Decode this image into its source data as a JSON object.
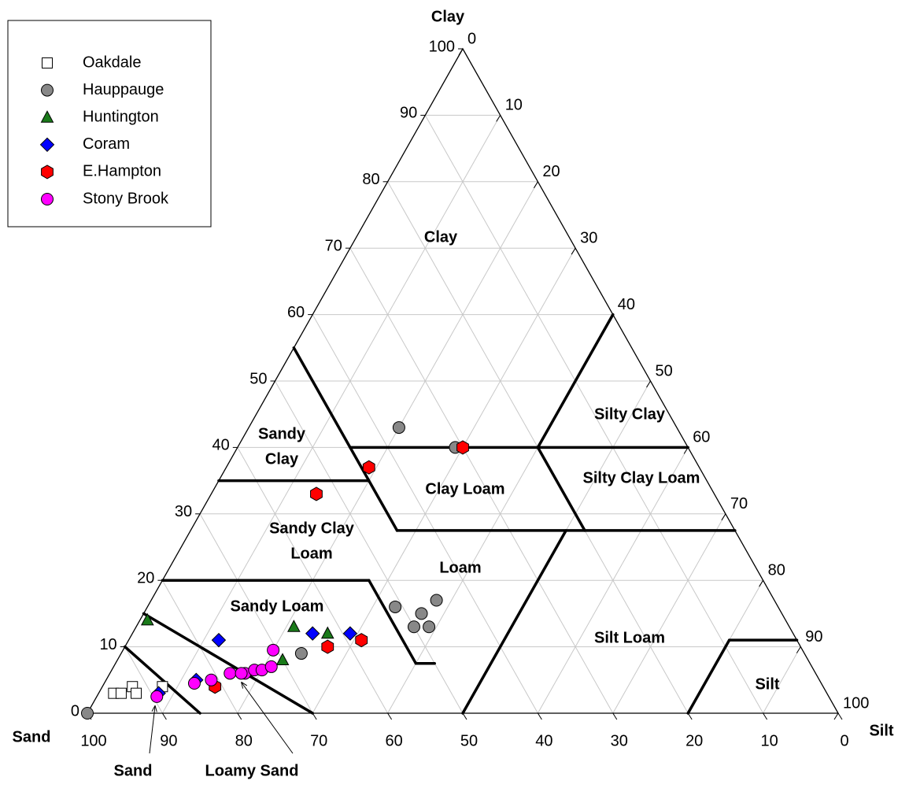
{
  "chart_data": {
    "type": "ternary",
    "axis_titles": {
      "clay": "Clay",
      "sand": "Sand",
      "silt": "Silt"
    },
    "clay_ticks": [
      0,
      10,
      20,
      30,
      40,
      50,
      60,
      70,
      80,
      90,
      100
    ],
    "silt_ticks": [
      0,
      10,
      20,
      30,
      40,
      50,
      60,
      70,
      80,
      90,
      100
    ],
    "sand_ticks": [
      100,
      90,
      80,
      70,
      60,
      50,
      40,
      30,
      20,
      10,
      0
    ],
    "grid": true,
    "legend_position": "upper left",
    "series": [
      {
        "name": "Oakdale",
        "marker": "square",
        "color": "#ffffff",
        "clay": [
          3,
          3,
          4,
          3,
          4
        ],
        "silt": [
          2,
          3,
          4,
          5,
          8
        ]
      },
      {
        "name": "Hauppauge",
        "marker": "circle",
        "color": "#888888",
        "clay": [
          0,
          43,
          40,
          9,
          16,
          17,
          15,
          13,
          13
        ],
        "silt": [
          0,
          20,
          29,
          24,
          33,
          38,
          37,
          37,
          39
        ]
      },
      {
        "name": "Huntington",
        "marker": "triangle",
        "color": "#1a7a1a",
        "clay": [
          14,
          13,
          12,
          8
        ],
        "silt": [
          1,
          21,
          26,
          22
        ]
      },
      {
        "name": "Coram",
        "marker": "diamond",
        "color": "#0000ff",
        "clay": [
          3,
          11,
          12,
          12,
          5
        ],
        "silt": [
          8,
          12,
          24,
          29,
          12
        ]
      },
      {
        "name": "E.Hampton",
        "marker": "hexagon",
        "color": "#ff0000",
        "clay": [
          40,
          37,
          33,
          10,
          11,
          4
        ],
        "silt": [
          30,
          19,
          14,
          27,
          31,
          15
        ]
      },
      {
        "name": "Stony Brook",
        "marker": "circle",
        "color": "#ff00ff",
        "clay": [
          2.5,
          4.5,
          5,
          6,
          6,
          6.5,
          6.5,
          7,
          9.5,
          6
        ],
        "silt": [
          8,
          12,
          14,
          16,
          18,
          19,
          20,
          21,
          20,
          17.5
        ]
      }
    ],
    "boundaries": [
      [
        [
          10,
          0
        ],
        [
          0,
          15
        ]
      ],
      [
        [
          15,
          0
        ],
        [
          0,
          30
        ]
      ],
      [
        [
          20,
          0
        ],
        [
          20,
          27.5
        ],
        [
          7.5,
          40
        ],
        [
          7.5,
          42.5
        ]
      ],
      [
        [
          35,
          0
        ],
        [
          35,
          20
        ]
      ],
      [
        [
          55,
          0
        ],
        [
          27.5,
          27.5
        ]
      ],
      [
        [
          40,
          15
        ],
        [
          40,
          60
        ]
      ],
      [
        [
          40,
          40
        ],
        [
          60,
          40
        ]
      ],
      [
        [
          40,
          40
        ],
        [
          27.5,
          52.5
        ]
      ],
      [
        [
          27.5,
          27.5
        ],
        [
          27.5,
          72.5
        ]
      ],
      [
        [
          27.5,
          50
        ],
        [
          0,
          50
        ]
      ],
      [
        [
          0,
          80
        ],
        [
          11,
          80
        ],
        [
          11,
          89
        ]
      ]
    ],
    "region_labels": [
      {
        "lines": [
          "Clay"
        ]
      },
      {
        "lines": [
          "Silty Clay"
        ]
      },
      {
        "lines": [
          "Sandy",
          "Clay"
        ]
      },
      {
        "lines": [
          "Silty Clay Loam"
        ]
      },
      {
        "lines": [
          "Clay Loam"
        ]
      },
      {
        "lines": [
          "Sandy Clay",
          "Loam"
        ]
      },
      {
        "lines": [
          "Loam"
        ]
      },
      {
        "lines": [
          "Sandy Loam"
        ]
      },
      {
        "lines": [
          "Silt Loam"
        ]
      },
      {
        "lines": [
          "Silt"
        ]
      },
      {
        "lines": [
          "Sand"
        ]
      },
      {
        "lines": [
          "Loamy Sand"
        ]
      }
    ]
  }
}
